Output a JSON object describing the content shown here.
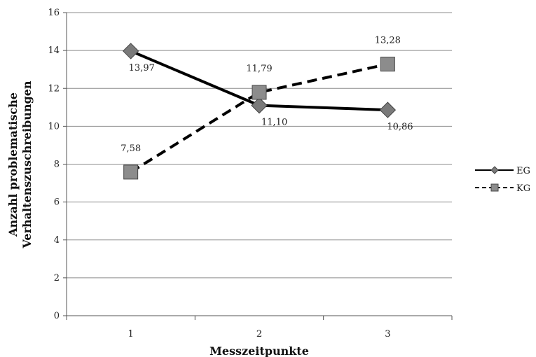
{
  "chart_data": {
    "type": "line",
    "title": "",
    "xlabel": "Messzeitpunkte",
    "ylabel_lines": [
      "Anzahl problematische",
      "Verhaltenszuschreibungen"
    ],
    "categories": [
      "1",
      "2",
      "3"
    ],
    "ylim": [
      0,
      16
    ],
    "yticks": [
      "0",
      "2",
      "4",
      "6",
      "8",
      "10",
      "12",
      "14",
      "16"
    ],
    "grid": true,
    "legend_position": "right",
    "series": [
      {
        "name": "EG",
        "values": [
          13.97,
          11.1,
          10.86
        ],
        "labels": [
          "13,97",
          "11,10",
          "10,86"
        ],
        "line_style": "solid",
        "marker": "diamond",
        "color": "#000000",
        "marker_color": "#7a7a7a"
      },
      {
        "name": "KG",
        "values": [
          7.58,
          11.79,
          13.28
        ],
        "labels": [
          "7,58",
          "11,79",
          "13,28"
        ],
        "line_style": "dashed",
        "marker": "square",
        "color": "#000000",
        "marker_color": "#8c8c8c"
      }
    ]
  }
}
